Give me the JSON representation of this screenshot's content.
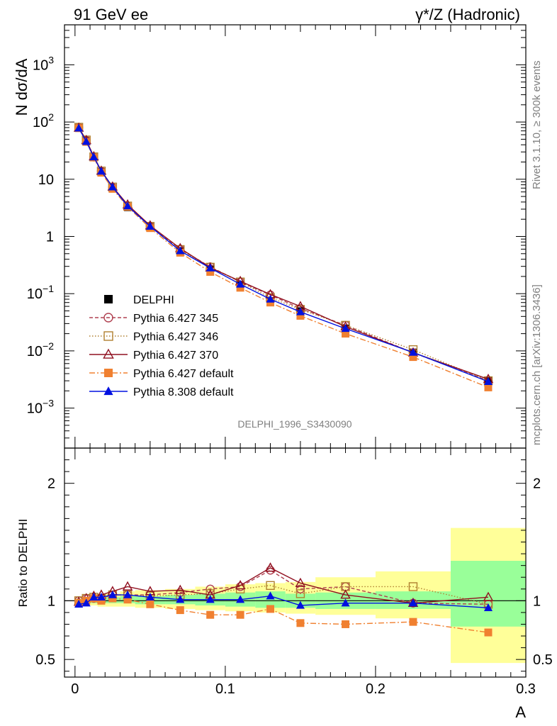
{
  "header": {
    "left_title": "91 GeV ee",
    "right_title": "γ*/Z (Hadronic)"
  },
  "side_text": {
    "rivet": "Rivet 3.1.10, ≥ 300k events",
    "mcplots": "mcplots.cern.ch [arXiv:1306.3436]"
  },
  "watermark": "DELPHI_1996_S3430090",
  "chart_data": [
    {
      "type": "line",
      "panel": "main",
      "ylabel": "N dσ/dA",
      "yscale": "log",
      "ylim": [
        0.0002,
        5000
      ],
      "xlim": [
        -0.007,
        0.3
      ],
      "ytick_labels": [
        {
          "value": 0.001,
          "base": "10",
          "exp": "−3"
        },
        {
          "value": 0.01,
          "base": "10",
          "exp": "−2"
        },
        {
          "value": 0.1,
          "base": "10",
          "exp": "−1"
        },
        {
          "value": 1,
          "base": "1",
          "exp": ""
        },
        {
          "value": 10,
          "base": "10",
          "exp": ""
        },
        {
          "value": 100,
          "base": "10",
          "exp": "2"
        },
        {
          "value": 1000,
          "base": "10",
          "exp": "3"
        }
      ],
      "legend_position": "bottom-left",
      "x": [
        0.0025,
        0.0075,
        0.0125,
        0.0175,
        0.025,
        0.035,
        0.05,
        0.07,
        0.09,
        0.11,
        0.13,
        0.15,
        0.18,
        0.225,
        0.275
      ],
      "series": [
        {
          "name": "DELPHI",
          "color": "#000000",
          "marker": "square-filled",
          "line": "none",
          "values": [
            80,
            47,
            24,
            13.5,
            6.9,
            3.2,
            1.45,
            0.56,
            0.27,
            0.145,
            0.075,
            0.05,
            0.025,
            0.0095,
            0.0031
          ]
        },
        {
          "name": "Pythia 6.427 345",
          "color": "#b04050",
          "marker": "circle-open",
          "line": "dashed",
          "values": [
            80.5,
            48,
            24.4,
            13.8,
            7.2,
            3.4,
            1.52,
            0.6,
            0.295,
            0.16,
            0.095,
            0.055,
            0.028,
            0.0093,
            0.003
          ]
        },
        {
          "name": "Pythia 6.427 346",
          "color": "#b08030",
          "marker": "square-open",
          "line": "dotted",
          "values": [
            81,
            48.5,
            24.6,
            13.9,
            7.3,
            3.4,
            1.5,
            0.59,
            0.29,
            0.16,
            0.085,
            0.053,
            0.028,
            0.0105,
            0.003
          ]
        },
        {
          "name": "Pythia 6.427 370",
          "color": "#901020",
          "marker": "triangle-open",
          "line": "solid",
          "values": [
            79,
            48,
            25,
            14,
            7.4,
            3.6,
            1.55,
            0.62,
            0.285,
            0.165,
            0.097,
            0.06,
            0.0265,
            0.0093,
            0.0032
          ]
        },
        {
          "name": "Pythia 6.427 default",
          "color": "#f08030",
          "marker": "square-filled",
          "line": "dashdot",
          "values": [
            78,
            45,
            24,
            13,
            6.8,
            3.3,
            1.4,
            0.52,
            0.24,
            0.127,
            0.07,
            0.041,
            0.02,
            0.0078,
            0.0023
          ]
        },
        {
          "name": "Pythia 8.308 default",
          "color": "#0010e0",
          "marker": "triangle-filled",
          "line": "solid",
          "values": [
            78,
            45.5,
            24.5,
            13.8,
            7.3,
            3.4,
            1.5,
            0.56,
            0.28,
            0.146,
            0.08,
            0.048,
            0.0245,
            0.0094,
            0.0029
          ]
        }
      ]
    },
    {
      "type": "line",
      "panel": "ratio",
      "ylabel": "Ratio to DELPHI",
      "xlabel": "A",
      "ylim": [
        0.35,
        2.3
      ],
      "xlim": [
        -0.007,
        0.3
      ],
      "yticks": [
        0.5,
        1,
        2
      ],
      "ytick_labels": [
        "0.5",
        "1",
        "2"
      ],
      "xticks": [
        0,
        0.1,
        0.2,
        0.3
      ],
      "xtick_labels": [
        "0",
        "0.1",
        "0.2",
        "0.3"
      ],
      "x": [
        0.0025,
        0.0075,
        0.0125,
        0.0175,
        0.025,
        0.035,
        0.05,
        0.07,
        0.09,
        0.11,
        0.13,
        0.15,
        0.18,
        0.225,
        0.275
      ],
      "bands": {
        "bin_edges": [
          0,
          0.005,
          0.01,
          0.015,
          0.02,
          0.03,
          0.04,
          0.06,
          0.08,
          0.1,
          0.12,
          0.14,
          0.16,
          0.2,
          0.25,
          0.3
        ],
        "inner": [
          [
            0.99,
            1.01
          ],
          [
            0.98,
            1.02
          ],
          [
            0.98,
            1.02
          ],
          [
            0.97,
            1.02
          ],
          [
            0.98,
            1.03
          ],
          [
            0.98,
            1.04
          ],
          [
            0.97,
            1.04
          ],
          [
            0.97,
            1.05
          ],
          [
            0.96,
            1.06
          ],
          [
            0.95,
            1.07
          ],
          [
            0.94,
            1.08
          ],
          [
            0.94,
            1.06
          ],
          [
            0.93,
            1.07
          ],
          [
            0.93,
            1.08
          ],
          [
            0.78,
            1.34
          ]
        ],
        "outer": [
          [
            0.98,
            1.02
          ],
          [
            0.97,
            1.03
          ],
          [
            0.96,
            1.04
          ],
          [
            0.95,
            1.05
          ],
          [
            0.95,
            1.06
          ],
          [
            0.95,
            1.08
          ],
          [
            0.94,
            1.09
          ],
          [
            0.93,
            1.1
          ],
          [
            0.92,
            1.12
          ],
          [
            0.91,
            1.14
          ],
          [
            0.9,
            1.15
          ],
          [
            0.89,
            1.16
          ],
          [
            0.88,
            1.2
          ],
          [
            0.85,
            1.25
          ],
          [
            0.47,
            1.62
          ]
        ],
        "inner_color": "#99ff99",
        "outer_color": "#ffff99"
      },
      "series": [
        {
          "name": "Pythia 6.427 345",
          "color": "#b04050",
          "marker": "circle-open",
          "line": "dashed",
          "values": [
            1.0,
            1.02,
            1.02,
            1.02,
            1.05,
            1.05,
            1.05,
            1.07,
            1.1,
            1.12,
            1.26,
            1.1,
            1.12,
            0.98,
            0.97
          ]
        },
        {
          "name": "Pythia 6.427 346",
          "color": "#b08030",
          "marker": "square-open",
          "line": "dotted",
          "values": [
            1.0,
            1.02,
            1.03,
            1.02,
            1.05,
            1.05,
            1.04,
            1.05,
            1.06,
            1.1,
            1.13,
            1.06,
            1.12,
            1.12,
            0.97
          ]
        },
        {
          "name": "Pythia 6.427 370",
          "color": "#901020",
          "marker": "triangle-open",
          "line": "solid",
          "values": [
            0.99,
            1.02,
            1.04,
            1.05,
            1.08,
            1.12,
            1.08,
            1.09,
            1.05,
            1.13,
            1.28,
            1.15,
            1.05,
            0.98,
            1.03
          ]
        },
        {
          "name": "Pythia 6.427 default",
          "color": "#f08030",
          "marker": "square-filled",
          "line": "dashdot",
          "values": [
            0.98,
            1.0,
            1.02,
            1.0,
            1.02,
            1.01,
            0.97,
            0.92,
            0.88,
            0.88,
            0.93,
            0.81,
            0.8,
            0.82,
            0.73
          ]
        },
        {
          "name": "Pythia 8.308 default",
          "color": "#0010e0",
          "marker": "triangle-filled",
          "line": "solid",
          "values": [
            0.97,
            0.98,
            1.03,
            1.03,
            1.05,
            1.05,
            1.03,
            1.01,
            1.01,
            1.01,
            1.04,
            0.96,
            0.98,
            0.98,
            0.94
          ]
        }
      ]
    }
  ]
}
